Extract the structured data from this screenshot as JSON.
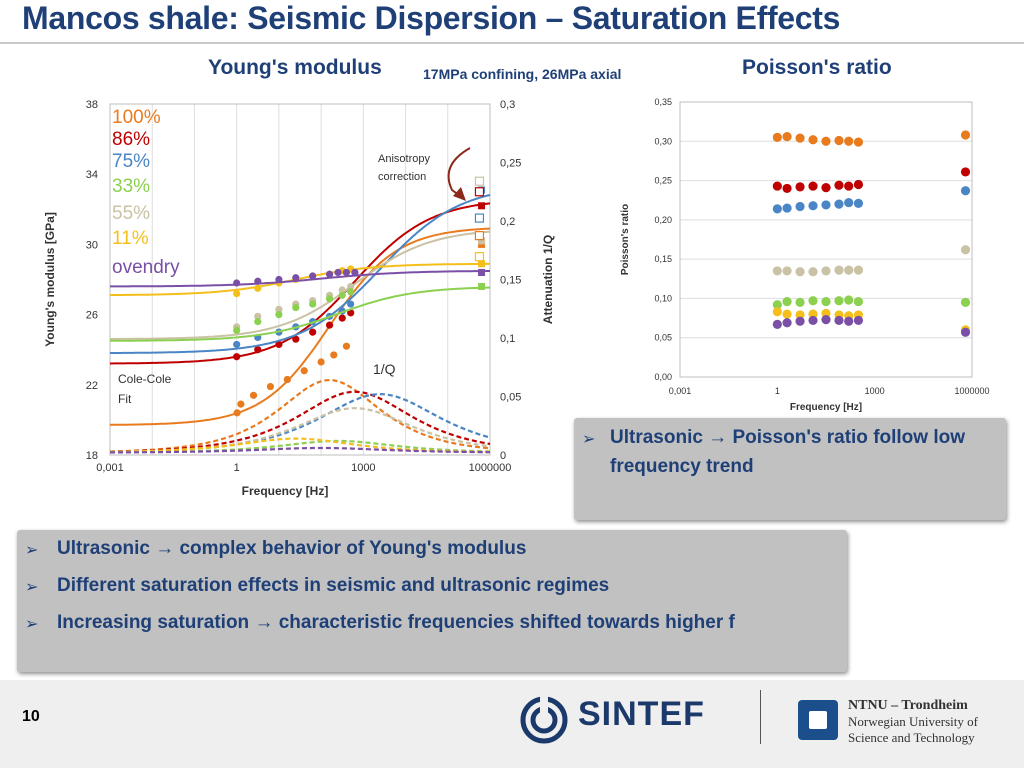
{
  "slide": {
    "title": "Mancos shale: Seismic Dispersion – Saturation Effects",
    "page_number": "10"
  },
  "left_heading": {
    "title": "Young's modulus",
    "subtitle": "17MPa confining, 26MPa axial"
  },
  "right_heading": {
    "title": "Poisson's ratio"
  },
  "colors": {
    "100%": "#e87b1e",
    "86%": "#c00000",
    "75%": "#4a86c5",
    "33%": "#8cd050",
    "55%": "#c9c2a4",
    "11%": "#f5bf1b",
    "ovendry": "#7a4fa6"
  },
  "chart_data": [
    {
      "type": "line",
      "title": "Young's modulus",
      "xlabel": "Frequency [Hz]",
      "ylabel": "Young's modulus [GPa]",
      "y2label": "Attenuation 1/Q",
      "xscale": "log",
      "xlim_log10": [
        -3,
        6
      ],
      "ylim": [
        18,
        38
      ],
      "y2lim": [
        0,
        0.3
      ],
      "x_ticks": [
        "0,001",
        "1",
        "1000",
        "1000000"
      ],
      "y_ticks": [
        "18",
        "22",
        "26",
        "30",
        "34",
        "38"
      ],
      "y2_ticks": [
        "0",
        "0,05",
        "0,1",
        "0,15",
        "0,2",
        "0,25",
        "0,3"
      ],
      "annotations": {
        "anisotropy": [
          "Anisotropy",
          "correction"
        ],
        "invq": "1/Q",
        "fit": [
          "Cole-Cole",
          "Fit"
        ]
      },
      "series": [
        {
          "name": "100%",
          "low": 19.7,
          "high": 31.0,
          "f0": 2.2,
          "w": 0.8,
          "q_peak": 0.062,
          "points": [
            [
              0.01,
              20.4
            ],
            [
              0.1,
              20.9
            ],
            [
              0.4,
              21.4
            ],
            [
              0.8,
              21.9
            ],
            [
              1.2,
              22.3
            ],
            [
              1.6,
              22.8
            ],
            [
              2.0,
              23.3
            ],
            [
              2.3,
              23.7
            ],
            [
              2.6,
              24.2
            ]
          ],
          "hf": 30.0
        },
        {
          "name": "86%",
          "low": 23.2,
          "high": 32.6,
          "f0": 2.8,
          "w": 0.9,
          "q_peak": 0.052,
          "points": [
            [
              0,
              23.6
            ],
            [
              0.5,
              24.0
            ],
            [
              1.0,
              24.3
            ],
            [
              1.4,
              24.6
            ],
            [
              1.8,
              25.0
            ],
            [
              2.2,
              25.4
            ],
            [
              2.5,
              25.8
            ],
            [
              2.7,
              26.1
            ]
          ],
          "hf": 32.2
        },
        {
          "name": "75%",
          "low": 23.8,
          "high": 33.4,
          "f0": 3.4,
          "w": 0.95,
          "q_peak": 0.05,
          "points": [
            [
              0,
              24.3
            ],
            [
              0.5,
              24.7
            ],
            [
              1.0,
              25.0
            ],
            [
              1.4,
              25.3
            ],
            [
              1.8,
              25.6
            ],
            [
              2.2,
              25.9
            ],
            [
              2.5,
              26.2
            ],
            [
              2.7,
              26.6
            ]
          ],
          "hf": 33.1
        },
        {
          "name": "55%",
          "low": 24.6,
          "high": 30.9,
          "f0": 2.8,
          "w": 0.9,
          "q_peak": 0.038,
          "points": [
            [
              0,
              25.3
            ],
            [
              0.5,
              25.9
            ],
            [
              1.0,
              26.3
            ],
            [
              1.4,
              26.6
            ],
            [
              1.8,
              26.8
            ],
            [
              2.2,
              27.1
            ],
            [
              2.5,
              27.4
            ],
            [
              2.7,
              27.6
            ]
          ],
          "hf": 30.2
        },
        {
          "name": "33%",
          "low": 24.5,
          "high": 27.6,
          "f0": 2.4,
          "w": 0.9,
          "q_peak": 0.01,
          "points": [
            [
              0,
              25.1
            ],
            [
              0.5,
              25.6
            ],
            [
              1.0,
              26.0
            ],
            [
              1.4,
              26.4
            ],
            [
              1.8,
              26.6
            ],
            [
              2.2,
              26.9
            ],
            [
              2.5,
              27.1
            ],
            [
              2.7,
              27.3
            ]
          ],
          "hf": 27.6
        },
        {
          "name": "11%",
          "low": 27.1,
          "high": 28.9,
          "f0": 1.4,
          "w": 0.9,
          "q_peak": 0.012,
          "points": [
            [
              0,
              27.2
            ],
            [
              0.5,
              27.5
            ],
            [
              1.0,
              27.8
            ],
            [
              1.4,
              28.0
            ],
            [
              1.8,
              28.2
            ],
            [
              2.2,
              28.3
            ],
            [
              2.5,
              28.5
            ],
            [
              2.7,
              28.6
            ]
          ],
          "hf": 28.9
        },
        {
          "name": "ovendry",
          "low": 27.6,
          "high": 28.5,
          "f0": 2.0,
          "w": 1.0,
          "q_peak": 0.004,
          "points": [
            [
              0,
              27.8
            ],
            [
              0.5,
              27.9
            ],
            [
              1.0,
              28.0
            ],
            [
              1.4,
              28.1
            ],
            [
              1.8,
              28.2
            ],
            [
              2.2,
              28.3
            ],
            [
              2.4,
              28.4
            ],
            [
              2.6,
              28.4
            ],
            [
              2.8,
              28.4
            ]
          ],
          "hf": 28.4
        }
      ],
      "anisotropy_markers": [
        {
          "color": "#e87b1e",
          "value": 30.5
        },
        {
          "color": "#f5bf1b",
          "value": 29.3
        },
        {
          "color": "#4a86c5",
          "value": 31.5
        },
        {
          "color": "#c00000",
          "value": 33.0
        },
        {
          "color": "#c9c2a4",
          "value": 33.6
        }
      ]
    },
    {
      "type": "scatter",
      "title": "Poisson's ratio",
      "xlabel": "Frequency [Hz]",
      "ylabel": "Poisson's ratio",
      "xscale": "log",
      "xlim_log10": [
        -3,
        6
      ],
      "ylim": [
        0,
        0.35
      ],
      "x_ticks": [
        "0,001",
        "1",
        "1000",
        "1000000"
      ],
      "y_ticks": [
        "0,00",
        "0,05",
        "0,10",
        "0,15",
        "0,20",
        "0,25",
        "0,30",
        "0,35"
      ],
      "series": [
        {
          "name": "100%",
          "values": [
            0.305,
            0.306,
            0.304,
            0.302,
            0.3,
            0.301,
            0.3,
            0.299
          ],
          "hf": 0.308
        },
        {
          "name": "86%",
          "values": [
            0.243,
            0.24,
            0.242,
            0.243,
            0.241,
            0.244,
            0.243,
            0.245
          ],
          "hf": 0.261
        },
        {
          "name": "75%",
          "values": [
            0.214,
            0.215,
            0.217,
            0.218,
            0.219,
            0.22,
            0.222,
            0.221
          ],
          "hf": 0.237
        },
        {
          "name": "55%",
          "values": [
            0.135,
            0.135,
            0.134,
            0.134,
            0.135,
            0.136,
            0.136,
            0.136
          ],
          "hf": 0.162
        },
        {
          "name": "33%",
          "values": [
            0.092,
            0.096,
            0.095,
            0.097,
            0.096,
            0.097,
            0.098,
            0.096
          ],
          "hf": 0.095
        },
        {
          "name": "11%",
          "values": [
            0.083,
            0.08,
            0.079,
            0.08,
            0.081,
            0.079,
            0.078,
            0.079
          ],
          "hf": 0.06
        },
        {
          "name": "ovendry",
          "values": [
            0.067,
            0.069,
            0.071,
            0.072,
            0.073,
            0.072,
            0.071,
            0.072
          ],
          "hf": 0.057
        }
      ],
      "x_log10": [
        0.0,
        0.3,
        0.7,
        1.1,
        1.5,
        1.9,
        2.2,
        2.5
      ],
      "hf_log10": 5.8
    }
  ],
  "callout": {
    "text": "Ultrasonic → Poisson's ratio follow low frequency trend"
  },
  "bullets": [
    "Ultrasonic → complex behavior of Young's modulus",
    "Different saturation effects in seismic and ultrasonic regimes",
    "Increasing saturation → characteristic frequencies shifted towards higher f"
  ],
  "logos": {
    "sintef": "SINTEF",
    "ntnu_line1": "NTNU – Trondheim",
    "ntnu_line2": "Norwegian University of",
    "ntnu_line3": "Science and Technology"
  }
}
